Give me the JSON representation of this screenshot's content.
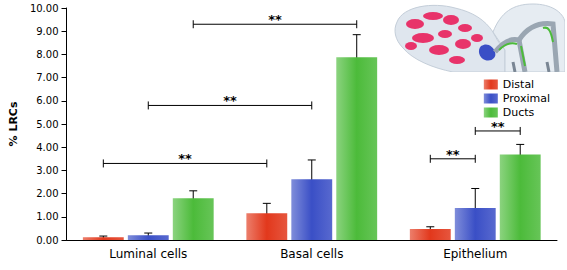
{
  "chart_data": {
    "type": "bar",
    "y_label": "% LRCs",
    "categories": [
      "Luminal cells",
      "Basal cells",
      "Epithelium"
    ],
    "series": [
      {
        "name": "Distal",
        "color": "#e2381c",
        "values": [
          0.12,
          1.15,
          0.47
        ],
        "errors": [
          0.05,
          0.43,
          0.1
        ]
      },
      {
        "name": "Proximal",
        "color": "#3a4fc6",
        "values": [
          0.2,
          2.62,
          1.38
        ],
        "errors": [
          0.1,
          0.83,
          0.84
        ]
      },
      {
        "name": "Ducts",
        "color": "#4cbb3a",
        "values": [
          1.8,
          7.88,
          3.68
        ],
        "errors": [
          0.32,
          0.97,
          0.44
        ]
      }
    ],
    "ylim": [
      0,
      10
    ],
    "yticks": [
      {
        "value": 0,
        "label": "0.00"
      },
      {
        "value": 1,
        "label": "1.00"
      },
      {
        "value": 2,
        "label": "2.00"
      },
      {
        "value": 3,
        "label": "3.00"
      },
      {
        "value": 4,
        "label": "4.00"
      },
      {
        "value": 5,
        "label": "5.00"
      },
      {
        "value": 6,
        "label": "6.00"
      },
      {
        "value": 7,
        "label": "7.00"
      },
      {
        "value": 8,
        "label": "8.00"
      },
      {
        "value": 9,
        "label": "9.00"
      },
      {
        "value": 10,
        "label": "10.00"
      }
    ],
    "grid": false,
    "legend": "right",
    "annotations": [
      {
        "text": "**",
        "from": {
          "category": "Luminal cells",
          "series": "Ducts"
        },
        "to": {
          "category": "Basal cells",
          "series": "Ducts"
        },
        "y": 9.3
      },
      {
        "text": "**",
        "from": {
          "category": "Luminal cells",
          "series": "Proximal"
        },
        "to": {
          "category": "Basal cells",
          "series": "Proximal"
        },
        "y": 5.8
      },
      {
        "text": "**",
        "from": {
          "category": "Luminal cells",
          "series": "Distal"
        },
        "to": {
          "category": "Basal cells",
          "series": "Distal"
        },
        "y": 3.3
      },
      {
        "text": "**",
        "from": {
          "category": "Epithelium",
          "series": "Distal"
        },
        "to": {
          "category": "Epithelium",
          "series": "Proximal"
        },
        "y": 3.5
      },
      {
        "text": "**",
        "from": {
          "category": "Epithelium",
          "series": "Proximal"
        },
        "to": {
          "category": "Epithelium",
          "series": "Ducts"
        },
        "y": 4.7
      }
    ]
  }
}
